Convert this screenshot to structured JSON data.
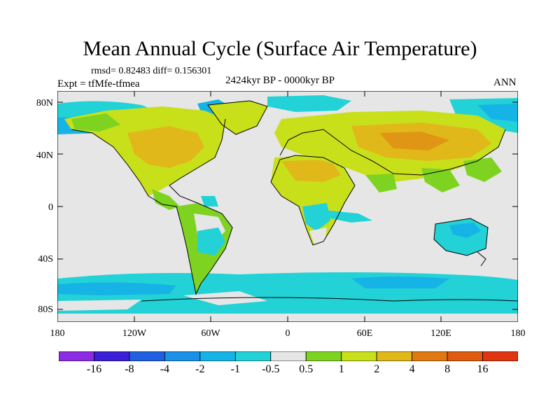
{
  "title": "Mean Annual Cycle (Surface Air Temperature)",
  "stats": "rmsd= 0.82483 diff= 0.156301",
  "experiment": "Expt = tfMfe-tfmea",
  "period": "2424kyr BP - 0000kyr BP",
  "season": "ANN",
  "lat_labels": [
    "80N",
    "40N",
    "0",
    "40S",
    "80S"
  ],
  "lon_labels": [
    "180",
    "120W",
    "60W",
    "0",
    "60E",
    "120E",
    "180"
  ],
  "colorbar": {
    "labels": [
      "-16",
      "-8",
      "-4",
      "-2",
      "-1",
      "-0.5",
      "0.5",
      "1",
      "2",
      "4",
      "8",
      "16"
    ],
    "colors": [
      "#8b2be2",
      "#3a1fd6",
      "#1f5fe0",
      "#1a90e6",
      "#16b4e6",
      "#22d2d6",
      "#e6e6e6",
      "#7ed321",
      "#c8e01a",
      "#e0b81a",
      "#e07a10",
      "#e05a10",
      "#e03510"
    ]
  }
}
